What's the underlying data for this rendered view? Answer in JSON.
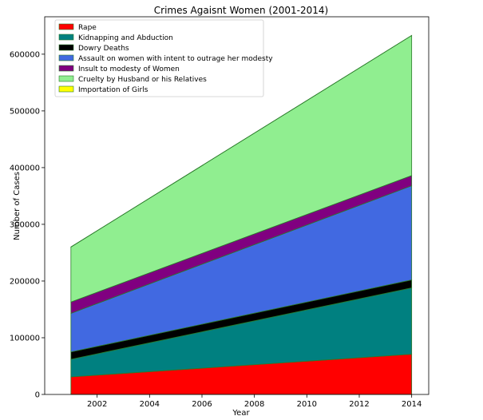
{
  "chart_data": {
    "type": "area",
    "stacked": true,
    "title": "Crimes Agaisnt Women (2001-2014)",
    "xlabel": "Year",
    "ylabel": "Number of Cases",
    "x": [
      2001,
      2014
    ],
    "xlim": [
      2000.0,
      2014.65
    ],
    "ylim": [
      0,
      666000
    ],
    "xticks": [
      2002,
      2004,
      2006,
      2008,
      2010,
      2012,
      2014
    ],
    "yticks": [
      0,
      100000,
      200000,
      300000,
      400000,
      500000,
      600000
    ],
    "grid": false,
    "legend_position": "top-left",
    "series": [
      {
        "name": "Rape",
        "color": "#ff0000",
        "values": [
          31000,
          71000
        ]
      },
      {
        "name": "Kidnapping and Abduction",
        "color": "#008080",
        "values": [
          31000,
          117000
        ]
      },
      {
        "name": "Dowry Deaths",
        "color": "#000000",
        "values": [
          13000,
          14000
        ]
      },
      {
        "name": "Assault on women with intent to outrage her modesty",
        "color": "#4169e1",
        "values": [
          68000,
          166000
        ]
      },
      {
        "name": "Insult to modesty of Women",
        "color": "#800080",
        "values": [
          20000,
          18000
        ]
      },
      {
        "name": "Cruelty by Husband or his Relatives",
        "color": "#90ee90",
        "values": [
          97000,
          247000
        ]
      },
      {
        "name": "Importation of Girls",
        "color": "#ffff00",
        "values": [
          100,
          100
        ]
      }
    ]
  }
}
